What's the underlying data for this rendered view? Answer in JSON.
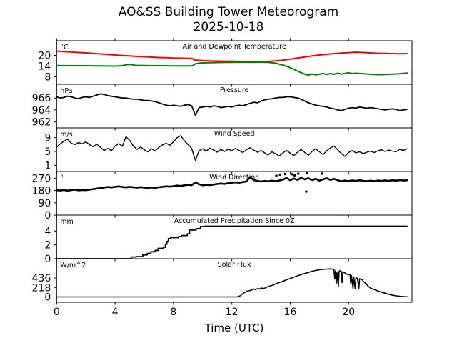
{
  "figure": {
    "title": "AO&SS Building Tower Meteorogram",
    "date": "2025-10-18",
    "background_color": "#ffffff",
    "axis_color": "#000000"
  },
  "chart_data": {
    "type": "line",
    "grid": false,
    "legend": "none",
    "x_axis": {
      "label": "Time (UTC)",
      "ticks": [
        0,
        4,
        8,
        12,
        16,
        20
      ],
      "range": [
        0,
        24.34
      ]
    },
    "panels": [
      {
        "id": "temperature",
        "title": "Air and Dewpoint Temperature",
        "unit": "°C",
        "ylim": [
          3.8,
          28.2
        ],
        "yticks": [
          20,
          14,
          8
        ],
        "series": [
          {
            "name": "air-temperature",
            "color": "#ff0000",
            "width": 2,
            "x": [
              0,
              0.5,
              1,
              1.5,
              2,
              2.5,
              3,
              3.5,
              4,
              4.5,
              5,
              5.5,
              6,
              6.5,
              7,
              7.5,
              8,
              8.5,
              9,
              9.3,
              9.45,
              9.75,
              10,
              10.5,
              11,
              11.5,
              12,
              12.5,
              13,
              13.5,
              14,
              14.5,
              15,
              15.5,
              16,
              16.5,
              17,
              17.5,
              18,
              18.5,
              19,
              19.5,
              20,
              20.5,
              21,
              21.5,
              22,
              22.5,
              23,
              23.5,
              24
            ],
            "y": [
              22.4,
              22.1,
              21.9,
              21.6,
              21.4,
              21.1,
              20.8,
              20.5,
              20.2,
              19.9,
              19.7,
              19.4,
              19.2,
              19.0,
              18.8,
              18.7,
              18.5,
              18.4,
              18.3,
              18.2,
              17.4,
              17.2,
              17.1,
              16.9,
              16.8,
              16.7,
              16.7,
              16.6,
              16.6,
              16.5,
              16.5,
              16.6,
              16.9,
              17.3,
              17.9,
              18.5,
              19.1,
              19.7,
              20.2,
              20.6,
              21.0,
              21.3,
              21.5,
              21.8,
              21.6,
              21.4,
              21.2,
              21.1,
              21.0,
              20.9,
              21.0
            ]
          },
          {
            "name": "dewpoint-temperature",
            "color": "#008000",
            "width": 2,
            "x": [
              0,
              1,
              2,
              3,
              4,
              4.5,
              4.8,
              5.1,
              5.4,
              6,
              7,
              8,
              9,
              9.3,
              9.5,
              9.75,
              10,
              10.5,
              11,
              11.5,
              12,
              12.5,
              13,
              13.5,
              14,
              14.5,
              15,
              15.25,
              15.5,
              15.75,
              16,
              16.25,
              16.5,
              16.75,
              17,
              17.25,
              17.5,
              17.75,
              18,
              18.25,
              18.5,
              18.75,
              19,
              19.25,
              19.5,
              19.75,
              20,
              20.25,
              20.5,
              21,
              21.5,
              22,
              22.5,
              23,
              23.5,
              24
            ],
            "y": [
              14.3,
              14.2,
              14.2,
              14.1,
              14.0,
              14.2,
              14.8,
              14.9,
              14.4,
              14.3,
              14.2,
              14.1,
              14.1,
              14.2,
              15.3,
              15.6,
              15.8,
              15.9,
              16.0,
              16.1,
              16.1,
              16.2,
              16.2,
              16.2,
              16.2,
              16.1,
              15.6,
              15.1,
              14.6,
              13.9,
              13.1,
              12.2,
              11.2,
              10.3,
              9.5,
              8.9,
              9.6,
              9.1,
              9.4,
              9.9,
              9.3,
              9.8,
              9.4,
              10.0,
              9.5,
              9.9,
              10.3,
              9.8,
              10.0,
              9.7,
              9.4,
              9.2,
              9.3,
              9.5,
              9.7,
              10.1
            ]
          }
        ]
      },
      {
        "id": "pressure",
        "title": "Pressure",
        "unit": "hPa",
        "ylim": [
          961.0,
          968.3
        ],
        "yticks": [
          966,
          964,
          962
        ],
        "series": [
          {
            "name": "pressure",
            "color": "#000000",
            "width": 1.8,
            "x0": 0,
            "dx": 0.25,
            "y": [
              966.2,
              966.0,
              966.1,
              966.3,
              966.2,
              966.0,
              965.9,
              966.1,
              966.2,
              966.1,
              966.3,
              966.5,
              966.7,
              966.6,
              966.4,
              966.3,
              966.2,
              966.1,
              966.0,
              966.0,
              965.9,
              965.8,
              965.8,
              965.7,
              965.6,
              965.6,
              965.5,
              965.4,
              965.2,
              965.0,
              964.8,
              964.7,
              964.8,
              964.7,
              964.6,
              964.8,
              964.9,
              964.7,
              963.1,
              964.4,
              964.5,
              964.6,
              964.5,
              964.7,
              964.6,
              964.4,
              964.5,
              964.6,
              964.5,
              964.7,
              964.8,
              964.7,
              964.9,
              965.1,
              965.3,
              965.2,
              965.5,
              965.7,
              965.8,
              965.9,
              966.0,
              966.1,
              966.1,
              966.2,
              966.2,
              966.1,
              966.0,
              965.8,
              965.5,
              965.2,
              965.0,
              964.8,
              964.7,
              964.6,
              964.5,
              964.3,
              964.2,
              964.0,
              963.9,
              964.1,
              964.3,
              964.4,
              964.3,
              964.5,
              964.4,
              964.3,
              964.4,
              964.3,
              964.2,
              964.1,
              964.0,
              964.1,
              964.2,
              964.1,
              963.9,
              964.0,
              964.1
            ]
          }
        ]
      },
      {
        "id": "wind-speed",
        "title": "Wind Speed",
        "unit": "m/s",
        "ylim": [
          -0.8,
          11.85
        ],
        "yticks": [
          9,
          5,
          1
        ],
        "series": [
          {
            "name": "wind-speed",
            "color": "#000000",
            "width": 1.4,
            "x0": 0,
            "dx": 0.25,
            "y": [
              6.3,
              7.2,
              8.0,
              8.6,
              7.4,
              7.0,
              7.6,
              7.2,
              7.8,
              7.0,
              6.4,
              7.1,
              6.2,
              5.3,
              5.9,
              5.2,
              6.6,
              7.3,
              6.5,
              9.3,
              8.2,
              6.6,
              5.6,
              6.3,
              5.5,
              4.9,
              5.8,
              5.1,
              6.2,
              6.9,
              7.4,
              6.8,
              7.8,
              9.0,
              9.6,
              8.1,
              7.0,
              5.9,
              2.4,
              5.2,
              5.8,
              5.1,
              6.0,
              5.4,
              4.8,
              5.6,
              5.0,
              5.7,
              5.2,
              5.9,
              5.3,
              4.7,
              5.5,
              6.1,
              5.4,
              4.8,
              5.3,
              4.6,
              4.0,
              4.9,
              4.3,
              3.7,
              4.6,
              5.3,
              4.5,
              3.8,
              4.8,
              5.6,
              4.7,
              3.9,
              5.0,
              5.8,
              4.9,
              4.1,
              5.2,
              6.0,
              6.6,
              5.5,
              4.4,
              3.6,
              4.7,
              5.3,
              4.6,
              4.9,
              4.4,
              4.8,
              5.1,
              4.7,
              5.2,
              5.5,
              5.0,
              5.4,
              5.1,
              4.9,
              5.6,
              5.3,
              5.8
            ]
          }
        ]
      },
      {
        "id": "wind-direction",
        "title": "Wind Direction",
        "unit": "°",
        "ylim": [
          0,
          319
        ],
        "yticks": [
          270,
          180,
          90,
          0
        ],
        "series": [
          {
            "name": "wind-direction",
            "color": "#000000",
            "width": 2.6,
            "x0": 0,
            "dx": 0.25,
            "y": [
              182,
              180,
              184,
              179,
              183,
              186,
              181,
              184,
              182,
              186,
              190,
              194,
              198,
              202,
              206,
              203,
              207,
              210,
              206,
              203,
              207,
              204,
              201,
              205,
              202,
              199,
              203,
              200,
              204,
              207,
              211,
              208,
              212,
              216,
              213,
              218,
              222,
              219,
              240,
              226,
              218,
              222,
              219,
              224,
              228,
              231,
              228,
              233,
              237,
              240,
              237,
              242,
              246,
              280,
              256,
              250,
              246,
              250,
              247,
              252,
              248,
              253,
              260,
              272,
              255,
              268,
              258,
              273,
              262,
              270,
              256,
              266,
              252,
              262,
              270,
              258,
              265,
              255,
              248,
              253,
              249,
              254,
              250,
              255,
              251,
              248,
              252,
              249,
              253,
              250,
              254,
              251,
              255,
              252,
              256,
              253,
              255
            ]
          }
        ],
        "scatter": {
          "name": "wind-direction-outlier-dot",
          "color": "#000000",
          "points": [
            [
              15.05,
              288
            ],
            [
              15.3,
              296
            ],
            [
              15.65,
              301
            ],
            [
              16.1,
              299
            ],
            [
              16.3,
              291
            ],
            [
              16.55,
              303
            ],
            [
              17.15,
              306
            ],
            [
              18.2,
              304
            ],
            [
              17.1,
              172
            ]
          ]
        }
      },
      {
        "id": "precipitation",
        "title": "Accumulated Precipitation Since 0Z",
        "unit": "mm",
        "ylim": [
          0,
          6.3
        ],
        "yticks": [
          4,
          2,
          0
        ],
        "series": [
          {
            "name": "accumulated-precipitation",
            "color": "#000000",
            "width": 1.8,
            "x": [
              0,
              5.1,
              5.1,
              5.45,
              5.45,
              5.9,
              5.9,
              6.2,
              6.2,
              6.45,
              6.45,
              6.75,
              6.75,
              6.95,
              6.95,
              7.3,
              7.3,
              7.45,
              7.45,
              7.55,
              7.55,
              7.65,
              7.65,
              7.8,
              7.8,
              8.35,
              8.35,
              8.55,
              8.55,
              8.95,
              8.95,
              9.1,
              9.1,
              9.55,
              9.55,
              9.85,
              9.85,
              10.15,
              10.15,
              24
            ],
            "y": [
              0,
              0,
              0.25,
              0.25,
              0.3,
              0.3,
              0.55,
              0.55,
              0.75,
              0.75,
              1.0,
              1.0,
              1.2,
              1.2,
              1.5,
              1.5,
              1.65,
              1.65,
              2.1,
              2.1,
              2.5,
              2.5,
              2.9,
              2.9,
              3.05,
              3.05,
              3.2,
              3.2,
              3.35,
              3.35,
              3.6,
              3.6,
              4.15,
              4.15,
              4.35,
              4.35,
              4.65,
              4.65,
              4.7,
              4.7
            ]
          }
        ]
      },
      {
        "id": "solar-flux",
        "title": "Solar Flux",
        "unit": "W/m^2",
        "ylim": [
          -123,
          880
        ],
        "yticks": [
          436,
          218,
          0
        ],
        "series": [
          {
            "name": "solar-flux",
            "color": "#000000",
            "width": 1.6,
            "x": [
              0,
              4,
              8,
              10,
              11,
              12,
              12.4,
              12.6,
              12.8,
              13.0,
              13.1,
              13.3,
              13.5,
              13.6,
              13.8,
              13.9,
              14.0,
              14.2,
              14.4,
              14.6,
              14.8,
              15.0,
              15.25,
              15.5,
              15.75,
              16.0,
              16.25,
              16.5,
              16.75,
              17.0,
              17.25,
              17.5,
              17.75,
              18.0,
              18.25,
              18.5,
              18.75,
              18.9,
              19.0,
              19.05,
              19.1,
              19.15,
              19.2,
              19.3,
              19.35,
              19.45,
              19.5,
              19.55,
              19.6,
              19.7,
              19.8,
              19.9,
              20.0,
              20.1,
              20.15,
              20.2,
              20.3,
              20.35,
              20.45,
              20.5,
              20.6,
              20.7,
              20.75,
              20.85,
              20.95,
              21.0,
              21.1,
              21.2,
              21.3,
              21.4,
              21.5,
              21.75,
              22.0,
              22.25,
              22.5,
              22.75,
              23.0,
              23.25,
              23.5,
              23.75,
              24
            ],
            "y": [
              0,
              0,
              0,
              0,
              0,
              0,
              2,
              30,
              90,
              125,
              140,
              150,
              185,
              170,
              195,
              180,
              205,
              195,
              225,
              250,
              270,
              300,
              330,
              360,
              395,
              425,
              455,
              485,
              515,
              540,
              565,
              590,
              610,
              625,
              635,
              642,
              645,
              640,
              630,
              420,
              600,
              300,
              560,
              250,
              590,
              610,
              580,
              330,
              580,
              560,
              540,
              520,
              515,
              510,
              300,
              490,
              200,
              460,
              180,
              440,
              430,
              200,
              420,
              410,
              390,
              360,
              330,
              310,
              260,
              230,
              205,
              170,
              140,
              110,
              85,
              60,
              40,
              25,
              15,
              8,
              4
            ]
          }
        ]
      }
    ]
  }
}
